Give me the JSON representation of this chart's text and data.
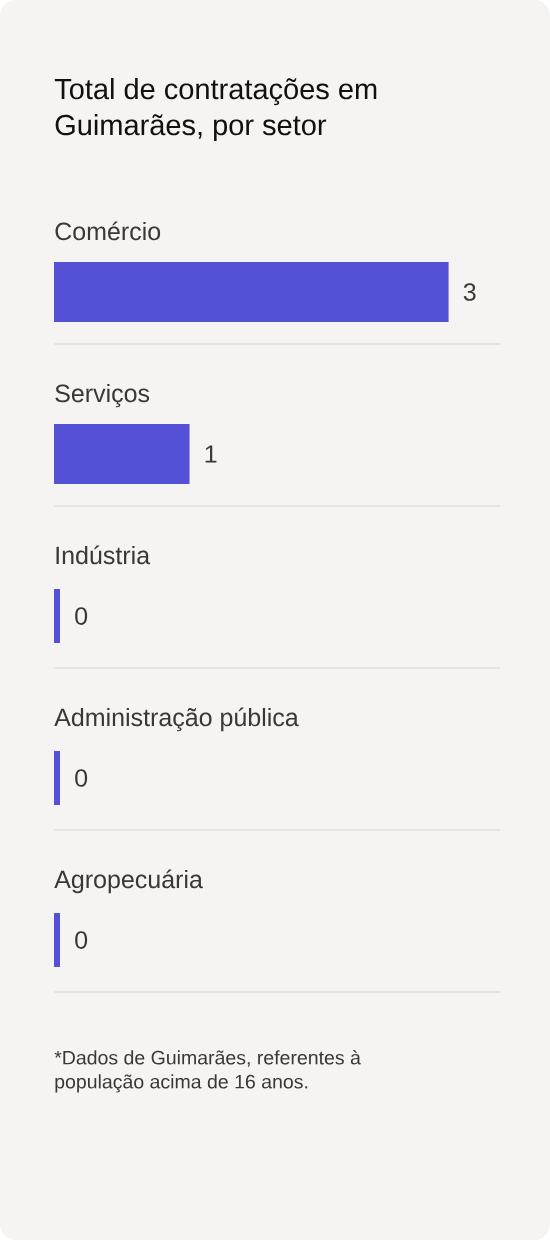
{
  "chart_data": {
    "type": "bar",
    "orientation": "horizontal",
    "title": "Total de contratações em Guimarães, por setor",
    "categories": [
      "Comércio",
      "Serviços",
      "Indústria",
      "Administração pública",
      "Agropecuária"
    ],
    "values": [
      3,
      1,
      0,
      0,
      0
    ],
    "color": "#5551d6",
    "data_labels": true,
    "tick_labels": "y",
    "annotations": [
      "*Dados de Guimarães, referentes à população acima de 16 anos."
    ]
  }
}
